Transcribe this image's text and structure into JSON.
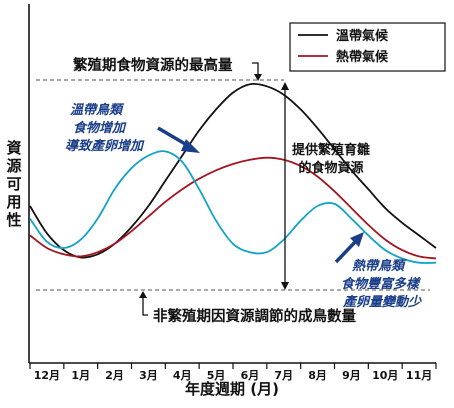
{
  "chart_data": {
    "type": "line",
    "xlabel": "年度週期 (月)",
    "ylabel": "資源可用性",
    "ylabel_chars": [
      "資",
      "源",
      "可",
      "用",
      "性"
    ],
    "categories": [
      "12月",
      "1月",
      "2月",
      "3月",
      "4月",
      "5月",
      "6月",
      "7月",
      "8月",
      "9月",
      "10月",
      "11月"
    ],
    "x_range": [
      0,
      12
    ],
    "y_range": [
      0,
      100
    ],
    "grid": false,
    "legend_position": "top-right",
    "series": [
      {
        "name": "溫帶氣候",
        "color": "#111111",
        "x": [
          0,
          0.5,
          1,
          1.5,
          2,
          2.5,
          3,
          3.5,
          4,
          4.5,
          5,
          5.5,
          6,
          6.5,
          7,
          7.5,
          8,
          8.5,
          9,
          9.5,
          10,
          10.5,
          11,
          11.5,
          12
        ],
        "values": [
          40,
          27,
          19,
          15.5,
          17,
          22,
          30,
          40,
          52,
          64,
          76,
          86,
          94,
          98,
          97,
          93,
          86,
          77,
          67,
          57,
          48,
          39,
          32,
          26,
          20
        ]
      },
      {
        "name": "熱帶氣候",
        "color": "#a3151f",
        "x": [
          0,
          0.5,
          1,
          1.5,
          2,
          2.5,
          3,
          3.5,
          4,
          4.5,
          5,
          5.5,
          6,
          6.5,
          7,
          7.5,
          8,
          8.5,
          9,
          9.5,
          10,
          10.5,
          11,
          11.5,
          12
        ],
        "values": [
          26,
          20,
          17,
          16,
          18,
          22,
          28,
          35,
          42,
          48,
          53,
          57,
          60,
          62,
          63,
          62,
          59,
          54,
          47,
          39,
          31,
          24,
          19,
          16,
          15
        ]
      },
      {
        "name": "",
        "color": "#12a3c7",
        "x": [
          0,
          0.5,
          1,
          1.5,
          2,
          2.5,
          3,
          3.5,
          4,
          4.5,
          5,
          5.5,
          6,
          6.5,
          7,
          7.5,
          8,
          8.5,
          9,
          9.5,
          10,
          10.5,
          11,
          11.5,
          12
        ],
        "values": [
          34,
          23,
          20,
          24,
          34,
          48,
          58,
          64,
          66,
          61,
          48,
          33,
          22,
          18,
          18,
          24,
          33,
          40,
          41,
          34,
          26,
          19,
          15,
          13,
          13
        ]
      }
    ],
    "annotations": {
      "top": "繁殖期食物資源的最高量",
      "bottom": "非繁殖期因資源調節的成鳥數量",
      "middle": [
        "提供繁殖育雛",
        "的食物資源"
      ],
      "temperate": [
        "溫帶鳥類",
        "食物增加",
        "導致產卵增加"
      ],
      "tropical": [
        "熱帶鳥類",
        "食物豐富多樣",
        "產卵量變動少"
      ]
    }
  }
}
